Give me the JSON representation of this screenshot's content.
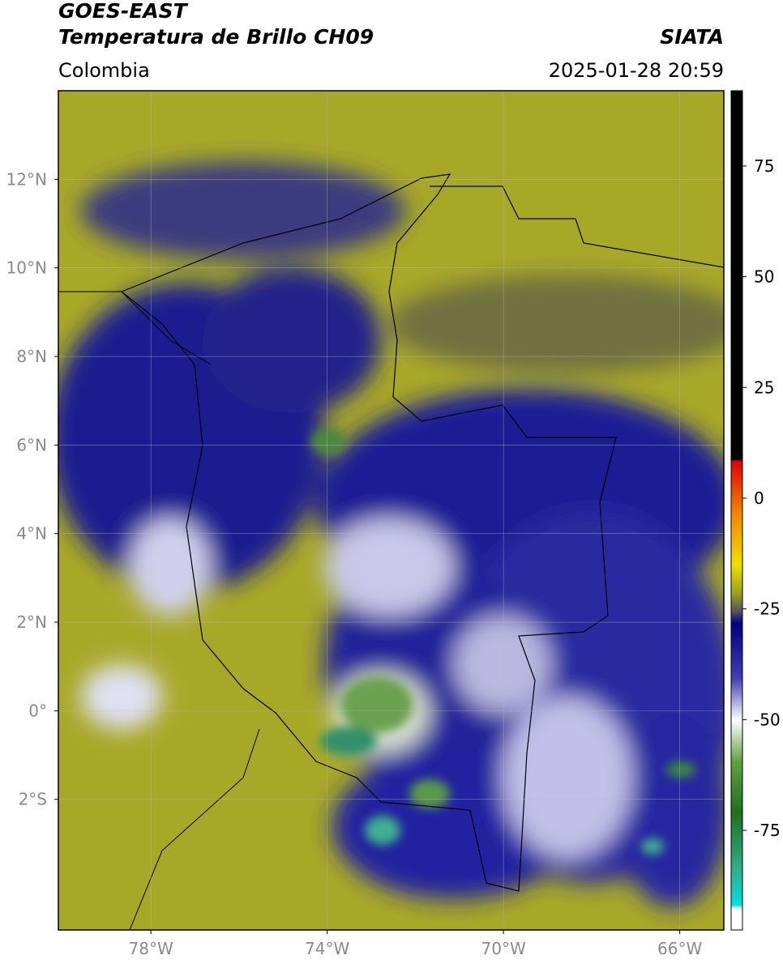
{
  "header": {
    "title": "GOES-EAST",
    "subtitle": "Temperatura de Brillo CH09",
    "source": "SIATA",
    "region": "Colombia",
    "datetime": "2025-01-28 20:59"
  },
  "map": {
    "xlim": [
      -80.1,
      -65
    ],
    "ylim": [
      -4.95,
      14
    ],
    "xticks": [
      {
        "value": -78,
        "label": "78°W"
      },
      {
        "value": -74,
        "label": "74°W"
      },
      {
        "value": -70,
        "label": "70°W"
      },
      {
        "value": -66,
        "label": "66°W"
      }
    ],
    "yticks": [
      {
        "value": 12,
        "label": "12°N"
      },
      {
        "value": 10,
        "label": "10°N"
      },
      {
        "value": 8,
        "label": "8°N"
      },
      {
        "value": 6,
        "label": "6°N"
      },
      {
        "value": 4,
        "label": "4°N"
      },
      {
        "value": 2,
        "label": "2°N"
      },
      {
        "value": 0,
        "label": "0°"
      },
      {
        "value": -2,
        "label": "2°S"
      }
    ],
    "grid": true
  },
  "colorbar": {
    "lim": [
      -97.5,
      92
    ],
    "ticks": [
      75,
      50,
      25,
      0,
      -25,
      -50,
      -75
    ]
  }
}
